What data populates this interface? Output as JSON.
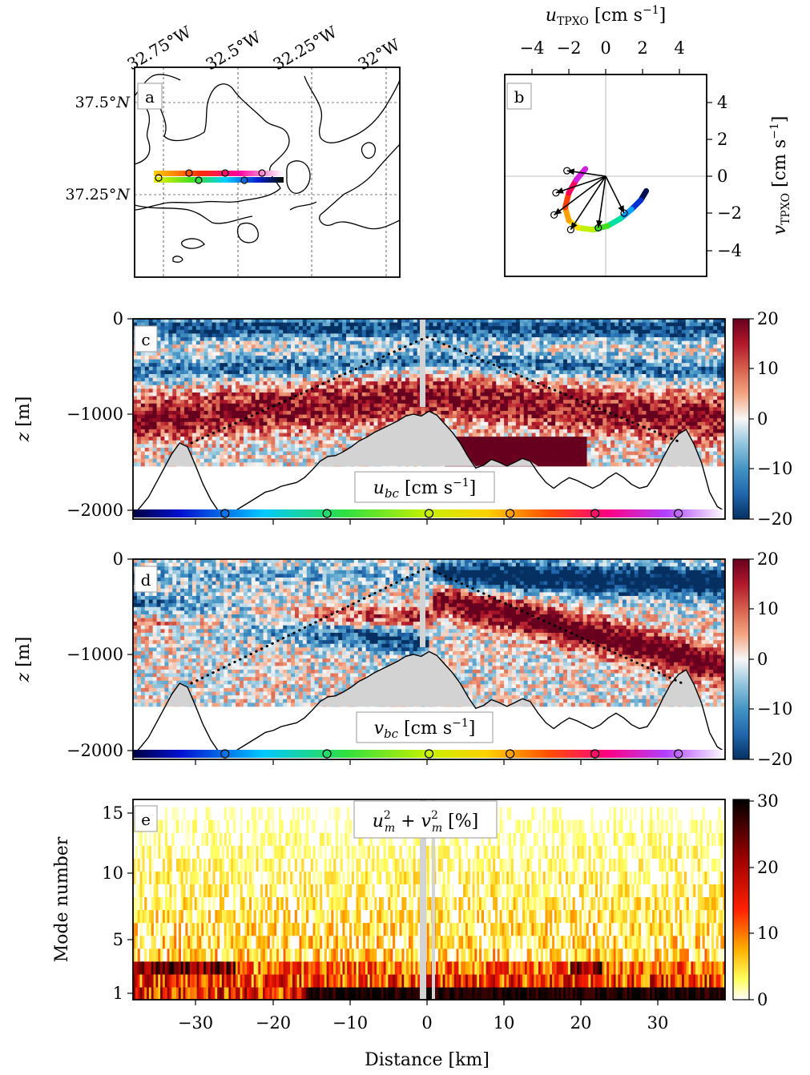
{
  "chart_data": [
    {
      "panel": "a",
      "type": "map",
      "panel_label": "a",
      "lon_ticks": [
        "32.75°W",
        "32.5°W",
        "32.25°W",
        "32°W"
      ],
      "lat_ticks": [
        "37.5°N",
        "37.25°N"
      ],
      "lon_range": [
        -32.85,
        -31.92
      ],
      "lat_range": [
        37.05,
        37.6
      ],
      "section_track": {
        "lon": [
          -32.8,
          -32.3
        ],
        "lat": [
          37.27,
          37.3
        ],
        "colored_by": "tidal phase",
        "phase_markers": 6
      }
    },
    {
      "panel": "b",
      "type": "scatter",
      "panel_label": "b",
      "xlabel": "u_TPXO [cm s^-1]",
      "ylabel": "v_TPXO [cm s^-1]",
      "xlim": [
        -5.5,
        5.5
      ],
      "ylim": [
        -5.2,
        5.2
      ],
      "xticks": [
        -4,
        -2,
        0,
        2,
        4
      ],
      "yticks": [
        -4,
        -2,
        0,
        2,
        4
      ],
      "tidal_ellipse_arc": {
        "u": [
          2.2,
          1.9,
          1.4,
          0.8,
          0.1,
          -0.7,
          -1.5,
          -2.0,
          -2.2,
          -2.0,
          -1.6,
          -1.1
        ],
        "v": [
          -0.8,
          -1.3,
          -1.8,
          -2.3,
          -2.7,
          -2.9,
          -2.8,
          -2.4,
          -1.7,
          -0.9,
          -0.2,
          0.4
        ]
      },
      "arrows": [
        {
          "u": 1.0,
          "v": -2.0
        },
        {
          "u": -0.4,
          "v": -2.8
        },
        {
          "u": -1.9,
          "v": -2.9
        },
        {
          "u": -2.8,
          "v": -2.1
        },
        {
          "u": -2.7,
          "v": -0.9
        },
        {
          "u": -2.1,
          "v": 0.3
        }
      ]
    },
    {
      "panel": "c",
      "type": "heatmap",
      "panel_label": "c",
      "ylabel": "z [m]",
      "inset_label": "u_bc [cm s^-1]",
      "xlim": [
        -38,
        38
      ],
      "ylim": [
        -2080,
        0
      ],
      "yticks": [
        0,
        -1000,
        -2000
      ],
      "colorbar": {
        "range": [
          -20,
          20
        ],
        "ticks": [
          20,
          10,
          0,
          -10,
          -20
        ],
        "cmap": "RdBu_r"
      },
      "data_depth_limit": -1530,
      "bathymetry": {
        "x": [
          -38,
          -37,
          -36,
          -35,
          -34,
          -33,
          -32,
          -31,
          -30,
          -29,
          -28,
          -27,
          -26,
          -25,
          -24,
          -23,
          -22,
          -21,
          -20,
          -19,
          -18,
          -17,
          -16,
          -15,
          -14,
          -13,
          -12,
          -11,
          -10,
          -9,
          -8,
          -7,
          -6,
          -5,
          -4,
          -3,
          -2,
          -1,
          0,
          1,
          2,
          3,
          4,
          5,
          6,
          7,
          8,
          9,
          10,
          11,
          12,
          13,
          14,
          15,
          16,
          17,
          18,
          19,
          20,
          21,
          22,
          23,
          24,
          25,
          26,
          27,
          28,
          29,
          30,
          31,
          32,
          33,
          34,
          35,
          36,
          37,
          38
        ],
        "z": [
          -2040,
          -1950,
          -1850,
          -1700,
          -1550,
          -1400,
          -1290,
          -1330,
          -1520,
          -1720,
          -1880,
          -2000,
          -2040,
          -2000,
          -1950,
          -1900,
          -1850,
          -1800,
          -1780,
          -1740,
          -1720,
          -1700,
          -1650,
          -1570,
          -1480,
          -1430,
          -1420,
          -1380,
          -1330,
          -1270,
          -1230,
          -1180,
          -1140,
          -1100,
          -1060,
          -1010,
          -990,
          -1010,
          -960,
          -1000,
          -1090,
          -1180,
          -1290,
          -1430,
          -1550,
          -1520,
          -1460,
          -1490,
          -1530,
          -1490,
          -1450,
          -1480,
          -1600,
          -1700,
          -1760,
          -1700,
          -1650,
          -1680,
          -1720,
          -1760,
          -1720,
          -1650,
          -1600,
          -1650,
          -1720,
          -1760,
          -1740,
          -1620,
          -1450,
          -1300,
          -1200,
          -1150,
          -1300,
          -1500,
          -1800,
          -1950,
          -2000
        ]
      },
      "ray_path_dotted": {
        "x": [
          -30.5,
          -0.3,
          32.5
        ],
        "z": [
          -1290,
          -190,
          -1290
        ]
      },
      "bottom_colorbar_ticks": [
        -26.2,
        -13.1,
        0,
        10.4,
        21.3,
        32.0
      ]
    },
    {
      "panel": "d",
      "type": "heatmap",
      "panel_label": "d",
      "ylabel": "z [m]",
      "inset_label": "v_bc [cm s^-1]",
      "xlim": [
        -38,
        38
      ],
      "ylim": [
        -2080,
        0
      ],
      "yticks": [
        0,
        -1000,
        -2000
      ],
      "colorbar": {
        "range": [
          -20,
          20
        ],
        "ticks": [
          20,
          10,
          0,
          -10,
          -20
        ],
        "cmap": "RdBu_r"
      },
      "data_depth_limit": -1530,
      "ray_path_dotted": {
        "x": [
          -30.5,
          -0.3,
          32.5
        ],
        "z": [
          -1290,
          -90,
          -1290
        ]
      },
      "bottom_colorbar_ticks": [
        -26.2,
        -13.1,
        0,
        10.4,
        21.3,
        32.0
      ]
    },
    {
      "panel": "e",
      "type": "heatmap",
      "panel_label": "e",
      "xlabel": "Distance [km]",
      "ylabel": "Mode number",
      "inset_label": "u_m^2 + v_m^2 [%]",
      "xlim": [
        -38,
        38
      ],
      "ylim": [
        0.5,
        15.5
      ],
      "xticks": [
        -30,
        -20,
        -10,
        0,
        10,
        20,
        30
      ],
      "yticks": [
        1,
        5,
        10,
        15
      ],
      "colorbar": {
        "range": [
          0,
          30
        ],
        "ticks": [
          30,
          20,
          10,
          0
        ],
        "cmap": "hot_r"
      },
      "gap_bands_km": [
        [
          -0.8,
          0.0
        ],
        [
          0.6,
          1.0
        ]
      ]
    }
  ],
  "text": {
    "panel_a": "a",
    "panel_b": "b",
    "panel_c": "c",
    "panel_d": "d",
    "panel_e": "e",
    "lon1": "32.75°",
    "lon2": "32.5°",
    "lon3": "32.25°",
    "lon4": "32°",
    "lonW": "W",
    "lat1": "37.5°",
    "lat2": "37.25°",
    "latN": "N",
    "u_sym": "u",
    "tpxo": "TPXO",
    "units_open": " [cm s",
    "units_exp": "−1",
    "units_close": "]",
    "v_sym": "v",
    "z_ylabel": "z",
    "z_unit": " [m]",
    "ubc_u": "u",
    "ubc_sub": "bc",
    "vbc_v": "v",
    "vbc_sub": "bc",
    "mode_label": "Mode number",
    "xlabel": "Distance [km]",
    "e_u": "u",
    "e_v": "v",
    "e_sub": "m",
    "e_sup": "2",
    "e_plus": " + ",
    "e_unit": " [%]",
    "bt_minus4": "−4",
    "bt_minus2": "−2",
    "bt_0": "0",
    "bt_2": "2",
    "bt_4": "4",
    "ct_0": "0",
    "ct_m1000": "−1000",
    "ct_m2000": "−2000",
    "cb_20": "20",
    "cb_10": "10",
    "cb_0": "0",
    "cb_m10": "−10",
    "cb_m20": "−20",
    "e_1": "1",
    "e_5": "5",
    "e_10": "10",
    "e_15": "15",
    "eb_30": "30",
    "eb_20": "20",
    "eb_10": "10",
    "eb_0": "0",
    "x_m30": "−30",
    "x_m20": "−20",
    "x_m10": "−10",
    "x_0": "0",
    "x_10": "10",
    "x_20": "20",
    "x_30": "30"
  }
}
